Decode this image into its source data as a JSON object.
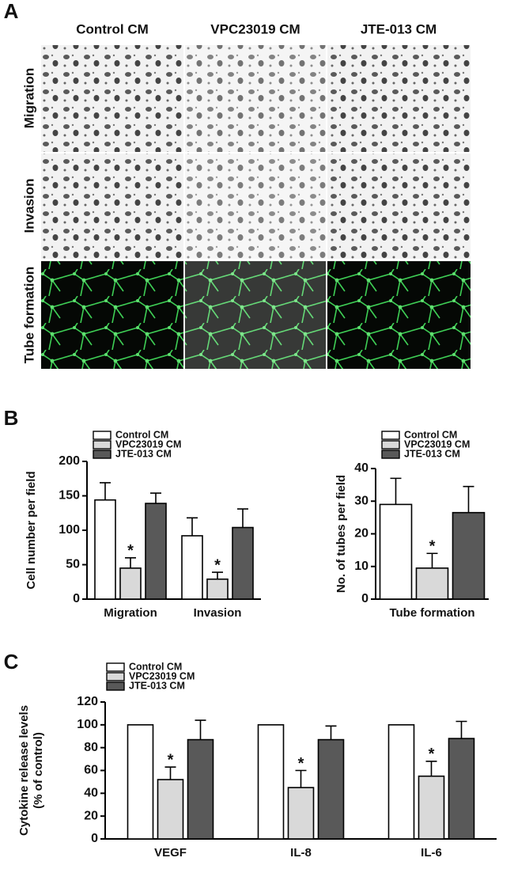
{
  "panel_labels": [
    "A",
    "B",
    "C"
  ],
  "panel_a": {
    "columns": [
      "Control CM",
      "VPC23019 CM",
      "JTE-013 CM"
    ],
    "rows": [
      "Migration",
      "Invasion",
      "Tube formation"
    ]
  },
  "chart_data": [
    {
      "type": "bar",
      "categories": [
        "Migration",
        "Invasion"
      ],
      "ylabel": [
        "Cell number per field"
      ],
      "ylim": [
        0,
        200
      ],
      "yticks": [
        0,
        50,
        100,
        150,
        200
      ],
      "series": [
        {
          "name": "Control CM",
          "color": "#ffffff",
          "values": [
            144,
            92
          ],
          "errors": [
            25,
            26
          ]
        },
        {
          "name": "VPC23019 CM",
          "color": "#d9d9d9",
          "values": [
            45,
            29
          ],
          "errors": [
            15,
            10
          ],
          "significance": [
            "*",
            "*"
          ]
        },
        {
          "name": "JTE-013 CM",
          "color": "#595959",
          "values": [
            139,
            104
          ],
          "errors": [
            15,
            27
          ]
        }
      ]
    },
    {
      "type": "bar",
      "categories": [
        "Tube formation"
      ],
      "ylabel": [
        "No. of tubes per field"
      ],
      "ylim": [
        0,
        40
      ],
      "yticks": [
        0,
        10,
        20,
        30,
        40
      ],
      "series": [
        {
          "name": "Control CM",
          "color": "#ffffff",
          "values": [
            29
          ],
          "errors": [
            8
          ]
        },
        {
          "name": "VPC23019 CM",
          "color": "#d9d9d9",
          "values": [
            9.5
          ],
          "errors": [
            4.5
          ],
          "significance": [
            "*"
          ]
        },
        {
          "name": "JTE-013 CM",
          "color": "#595959",
          "values": [
            26.5
          ],
          "errors": [
            8
          ]
        }
      ]
    },
    {
      "type": "bar",
      "categories": [
        "VEGF",
        "IL-8",
        "IL-6"
      ],
      "ylabel": [
        "Cytokine release levels",
        "(% of control)"
      ],
      "ylim": [
        0,
        120
      ],
      "yticks": [
        0,
        20,
        40,
        60,
        80,
        100,
        120
      ],
      "series": [
        {
          "name": "Control CM",
          "color": "#ffffff",
          "values": [
            100,
            100,
            100
          ]
        },
        {
          "name": "VPC23019 CM",
          "color": "#d9d9d9",
          "values": [
            52,
            45,
            55
          ],
          "errors": [
            11,
            15,
            13
          ],
          "significance": [
            "*",
            "*",
            "*"
          ]
        },
        {
          "name": "JTE-013 CM",
          "color": "#595959",
          "values": [
            87,
            87,
            88
          ],
          "errors": [
            17,
            12,
            15
          ]
        }
      ]
    }
  ]
}
